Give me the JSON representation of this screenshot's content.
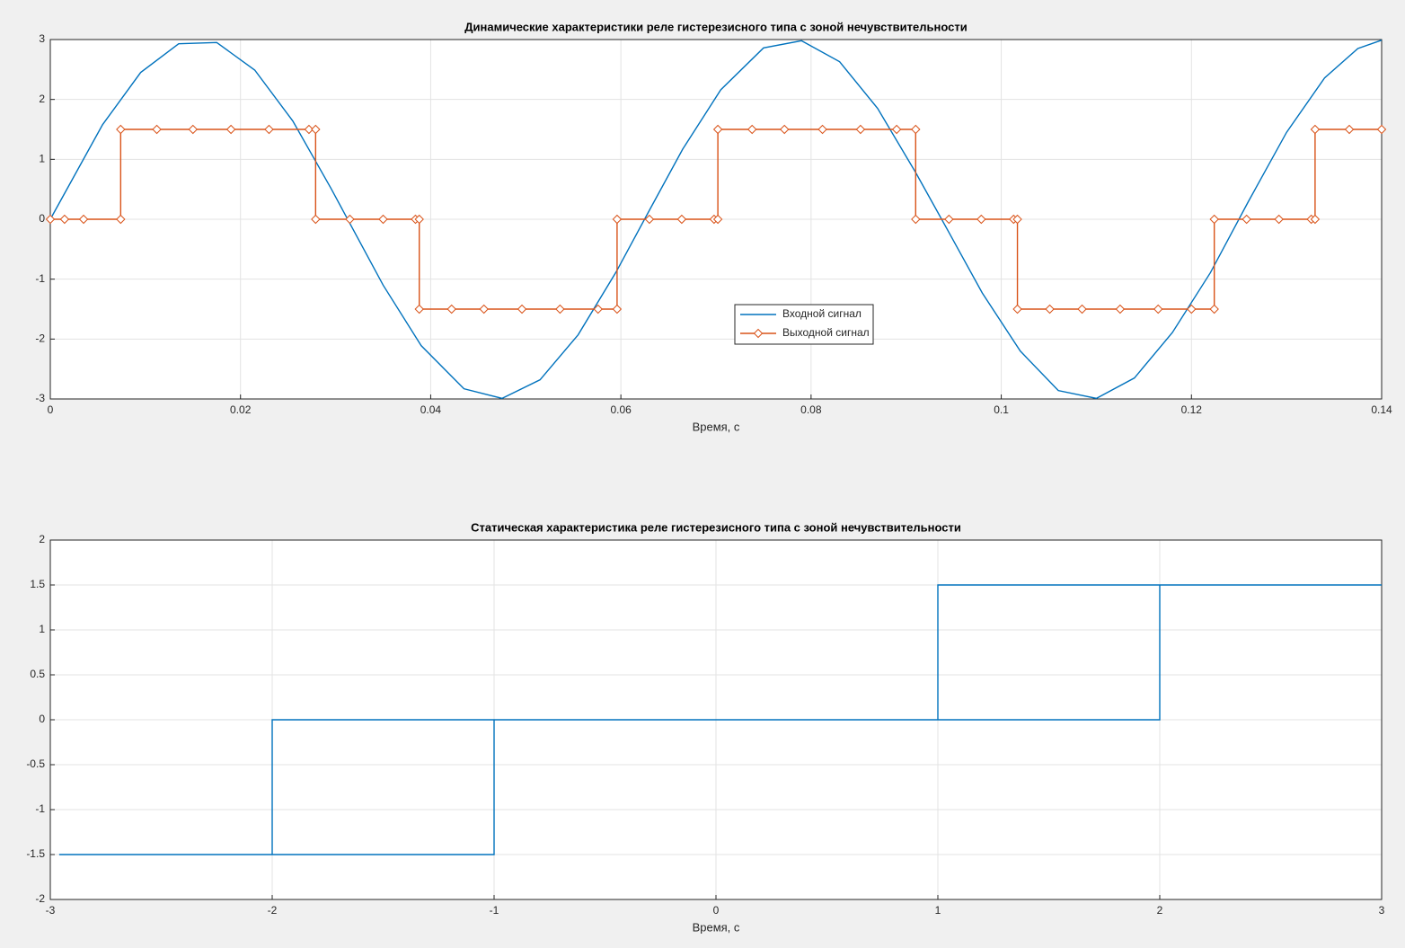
{
  "chart_data": [
    {
      "type": "line",
      "title": "Динамические характеристики реле гистерезисного типа с зоной нечувствительности",
      "x_label": "Время, с",
      "xlim": [
        0,
        0.14
      ],
      "xticks": [
        0,
        0.02,
        0.04,
        0.06,
        0.08,
        0.1,
        0.12,
        0.14
      ],
      "ylim": [
        -3,
        3
      ],
      "yticks": [
        -3,
        -2,
        -1,
        0,
        1,
        2,
        3
      ],
      "grid": true,
      "legend": "best",
      "series": [
        {
          "name": "Входной сигнал",
          "color": "#0072bd",
          "marker": "none",
          "x": [
            0,
            0.0055,
            0.0095,
            0.0135,
            0.0175,
            0.0215,
            0.0255,
            0.0295,
            0.035,
            0.039,
            0.0435,
            0.0475,
            0.0515,
            0.0555,
            0.0595,
            0.063,
            0.0665,
            0.0705,
            0.075,
            0.079,
            0.083,
            0.087,
            0.091,
            0.0945,
            0.098,
            0.102,
            0.106,
            0.11,
            0.114,
            0.118,
            0.122,
            0.126,
            0.13,
            0.134,
            0.1375,
            0.14
          ],
          "values": [
            0,
            1.58,
            2.45,
            2.93,
            2.95,
            2.49,
            1.64,
            0.52,
            -1.1,
            -2.11,
            -2.83,
            -2.99,
            -2.68,
            -1.93,
            -0.88,
            0.15,
            1.17,
            2.16,
            2.86,
            2.98,
            2.63,
            1.85,
            0.78,
            -0.22,
            -1.23,
            -2.2,
            -2.86,
            -2.99,
            -2.65,
            -1.89,
            -0.89,
            0.3,
            1.45,
            2.36,
            2.85,
            2.99
          ]
        },
        {
          "name": "Выходной сигнал",
          "color": "#d95319",
          "marker": "diamond",
          "x": [
            0,
            0.0015,
            0.0035,
            0.0074,
            0.0074,
            0.0112,
            0.015,
            0.019,
            0.023,
            0.0272,
            0.0279,
            0.0279,
            0.0315,
            0.035,
            0.0384,
            0.0388,
            0.0388,
            0.0422,
            0.0456,
            0.0496,
            0.0536,
            0.0576,
            0.0596,
            0.0596,
            0.063,
            0.0664,
            0.0698,
            0.0702,
            0.0702,
            0.0738,
            0.0772,
            0.0812,
            0.0852,
            0.089,
            0.091,
            0.091,
            0.0945,
            0.0979,
            0.1013,
            0.1017,
            0.1017,
            0.1051,
            0.1085,
            0.1125,
            0.1165,
            0.12,
            0.1224,
            0.1224,
            0.1258,
            0.1292,
            0.1326,
            0.133,
            0.133,
            0.1366,
            0.14
          ],
          "values": [
            0,
            0,
            0,
            0,
            1.5,
            1.5,
            1.5,
            1.5,
            1.5,
            1.5,
            1.5,
            0,
            0,
            0,
            0,
            0,
            -1.5,
            -1.5,
            -1.5,
            -1.5,
            -1.5,
            -1.5,
            -1.5,
            0,
            0,
            0,
            0,
            0,
            1.5,
            1.5,
            1.5,
            1.5,
            1.5,
            1.5,
            1.5,
            0,
            0,
            0,
            0,
            0,
            -1.5,
            -1.5,
            -1.5,
            -1.5,
            -1.5,
            -1.5,
            -1.5,
            0,
            0,
            0,
            0,
            0,
            1.5,
            1.5,
            1.5
          ]
        }
      ]
    },
    {
      "type": "line",
      "title": "Статическая характеристика реле гистерезисного типа с зоной нечувствительности",
      "x_label": "Время, с",
      "xlim": [
        -3,
        3
      ],
      "xticks": [
        -3,
        -2,
        -1,
        0,
        1,
        2,
        3
      ],
      "ylim": [
        -2,
        2
      ],
      "yticks": [
        -2,
        -1.5,
        -1,
        -0.5,
        0,
        0.5,
        1,
        1.5,
        2
      ],
      "grid": true,
      "series": [
        {
          "color": "#0072bd",
          "marker": "none",
          "x": [
            -2.96,
            -1,
            -1,
            2,
            2,
            3,
            1,
            1,
            -2,
            -2,
            -2.96
          ],
          "values": [
            -1.5,
            -1.5,
            0,
            0,
            1.5,
            1.5,
            1.5,
            0,
            0,
            -1.5,
            -1.5
          ]
        }
      ]
    }
  ]
}
